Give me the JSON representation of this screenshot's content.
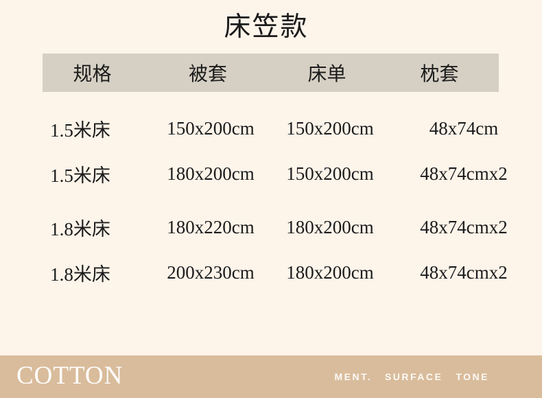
{
  "title": "床笠款",
  "table": {
    "headers": [
      "规格",
      "被套",
      "床单",
      "枕套"
    ],
    "rows": [
      [
        "1.5米床",
        "150x200cm",
        "150x200cm",
        "48x74cm"
      ],
      [
        "1.5米床",
        "180x200cm",
        "150x200cm",
        "48x74cmx2"
      ],
      [
        "1.8米床",
        "180x220cm",
        "180x200cm",
        "48x74cmx2"
      ],
      [
        "1.8米床",
        "200x230cm",
        "180x200cm",
        "48x74cmx2"
      ]
    ]
  },
  "footer": {
    "brand": "COTTON",
    "tagline_words": [
      "MENT.",
      "SURFACE",
      "TONE"
    ]
  },
  "colors": {
    "background": "#fdf4ea",
    "header_band": "#d6d0c4",
    "footer_bar": "#d9bc9b",
    "text": "#1b1b1b",
    "footer_text": "#ffffff"
  }
}
